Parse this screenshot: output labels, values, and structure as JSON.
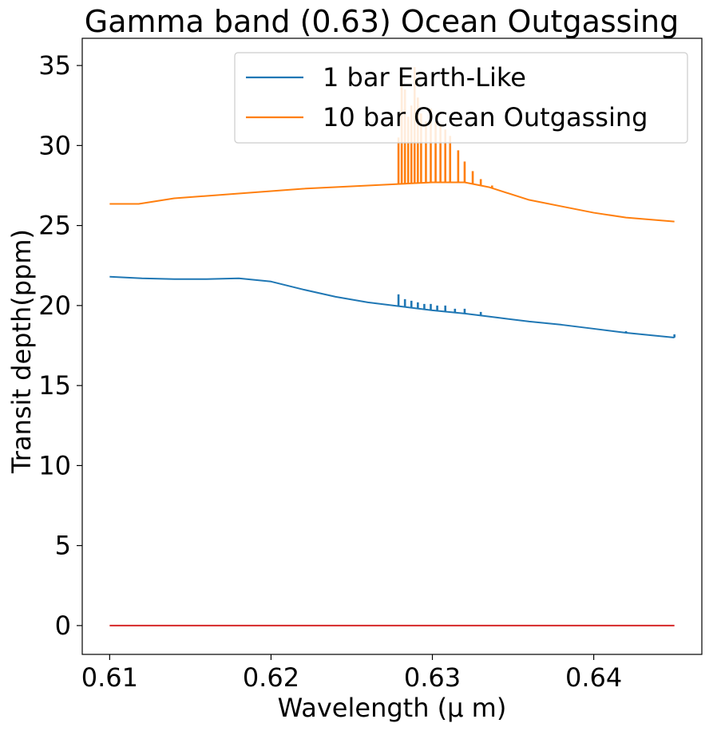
{
  "chart_data": {
    "type": "line",
    "title": "Gamma band (0.63) Ocean Outgassing",
    "xlabel": "Wavelength (μ m)",
    "ylabel": "Transit depth(ppm)",
    "xlim": [
      0.6083,
      0.6467
    ],
    "ylim": [
      -1.8,
      36.7
    ],
    "x_ticks": [
      0.61,
      0.62,
      0.63,
      0.64
    ],
    "x_tick_labels": [
      "0.61",
      "0.62",
      "0.63",
      "0.64"
    ],
    "y_ticks": [
      0,
      5,
      10,
      15,
      20,
      25,
      30,
      35
    ],
    "y_tick_labels": [
      "0",
      "5",
      "10",
      "15",
      "20",
      "25",
      "30",
      "35"
    ],
    "grid": false,
    "legend_position": "upper-right",
    "series": [
      {
        "name": "1 bar Earth-Like",
        "color": "#1f77b4",
        "x": [
          0.61,
          0.612,
          0.614,
          0.616,
          0.618,
          0.62,
          0.622,
          0.624,
          0.626,
          0.628,
          0.63,
          0.632,
          0.634,
          0.636,
          0.638,
          0.64,
          0.642,
          0.645
        ],
        "y": [
          21.8,
          21.7,
          21.65,
          21.65,
          21.7,
          21.5,
          21.0,
          20.55,
          20.2,
          19.95,
          19.7,
          19.5,
          19.25,
          19.0,
          18.8,
          18.55,
          18.3,
          18.0
        ],
        "spikes": [
          {
            "x": 0.6279,
            "y": 20.7
          },
          {
            "x": 0.6283,
            "y": 20.4
          },
          {
            "x": 0.6287,
            "y": 20.3
          },
          {
            "x": 0.6291,
            "y": 20.2
          },
          {
            "x": 0.6295,
            "y": 20.1
          },
          {
            "x": 0.6299,
            "y": 20.1
          },
          {
            "x": 0.6303,
            "y": 20.0
          },
          {
            "x": 0.6308,
            "y": 20.0
          },
          {
            "x": 0.6314,
            "y": 19.8
          },
          {
            "x": 0.632,
            "y": 19.8
          },
          {
            "x": 0.633,
            "y": 19.6
          },
          {
            "x": 0.642,
            "y": 18.4
          },
          {
            "x": 0.645,
            "y": 18.2
          }
        ]
      },
      {
        "name": "10 bar Ocean Outgassing",
        "color": "#ff7f0e",
        "x": [
          0.61,
          0.6118,
          0.614,
          0.618,
          0.622,
          0.626,
          0.628,
          0.63,
          0.632,
          0.6335,
          0.636,
          0.638,
          0.64,
          0.642,
          0.645
        ],
        "y": [
          26.35,
          26.35,
          26.7,
          27.0,
          27.3,
          27.5,
          27.6,
          27.7,
          27.7,
          27.4,
          26.6,
          26.2,
          25.8,
          25.5,
          25.25
        ],
        "spikes": [
          {
            "x": 0.6279,
            "y": 30.5
          },
          {
            "x": 0.6281,
            "y": 34.3
          },
          {
            "x": 0.6283,
            "y": 33.5
          },
          {
            "x": 0.6285,
            "y": 31.8
          },
          {
            "x": 0.6287,
            "y": 32.5
          },
          {
            "x": 0.6289,
            "y": 34.9
          },
          {
            "x": 0.6291,
            "y": 33.0
          },
          {
            "x": 0.6293,
            "y": 32.0
          },
          {
            "x": 0.6296,
            "y": 31.5
          },
          {
            "x": 0.6299,
            "y": 32.3
          },
          {
            "x": 0.6302,
            "y": 31.5
          },
          {
            "x": 0.6305,
            "y": 31.2
          },
          {
            "x": 0.6308,
            "y": 31.0
          },
          {
            "x": 0.6311,
            "y": 30.6
          },
          {
            "x": 0.6316,
            "y": 29.7
          },
          {
            "x": 0.632,
            "y": 29.0
          },
          {
            "x": 0.6325,
            "y": 28.4
          },
          {
            "x": 0.633,
            "y": 27.9
          },
          {
            "x": 0.6337,
            "y": 27.5
          }
        ]
      },
      {
        "name": "",
        "color": "#d62728",
        "legend": false,
        "x": [
          0.61,
          0.645
        ],
        "y": [
          0,
          0
        ]
      }
    ]
  }
}
